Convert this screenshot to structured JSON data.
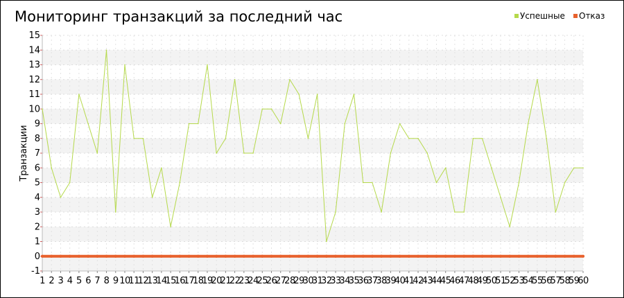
{
  "chart_data": {
    "type": "line",
    "title": "Мониторинг транзакций за последний час",
    "ylabel": "Транзакции",
    "xlabel": "",
    "ylim": [
      -1,
      15
    ],
    "yticks": [
      -1,
      0,
      1,
      2,
      3,
      4,
      5,
      6,
      7,
      8,
      9,
      10,
      11,
      12,
      13,
      14,
      15
    ],
    "x": [
      1,
      2,
      3,
      4,
      5,
      6,
      7,
      8,
      9,
      10,
      11,
      12,
      13,
      14,
      15,
      16,
      17,
      18,
      19,
      20,
      21,
      22,
      23,
      24,
      25,
      26,
      27,
      28,
      29,
      30,
      31,
      32,
      33,
      34,
      35,
      36,
      37,
      38,
      39,
      40,
      41,
      42,
      43,
      44,
      45,
      46,
      47,
      48,
      49,
      50,
      51,
      52,
      53,
      54,
      55,
      56,
      57,
      58,
      59,
      60
    ],
    "grid": true,
    "legend_position": "top-right",
    "series": [
      {
        "name": "Успешные",
        "color": "#b5d94a",
        "values": [
          10,
          6,
          4,
          5,
          11,
          9,
          7,
          14,
          3,
          13,
          8,
          8,
          4,
          6,
          2,
          5,
          9,
          9,
          13,
          7,
          8,
          12,
          7,
          7,
          10,
          10,
          9,
          12,
          11,
          8,
          11,
          1,
          3,
          9,
          11,
          5,
          5,
          3,
          7,
          9,
          8,
          8,
          7,
          5,
          6,
          3,
          3,
          8,
          8,
          6,
          4,
          2,
          5,
          9,
          12,
          8,
          3,
          5,
          6,
          6
        ]
      },
      {
        "name": "Отказ",
        "color": "#e8612c",
        "values": [
          0,
          0,
          0,
          0,
          0,
          0,
          0,
          0,
          0,
          0,
          0,
          0,
          0,
          0,
          0,
          0,
          0,
          0,
          0,
          0,
          0,
          0,
          0,
          0,
          0,
          0,
          0,
          0,
          0,
          0,
          0,
          0,
          0,
          0,
          0,
          0,
          0,
          0,
          0,
          0,
          0,
          0,
          0,
          0,
          0,
          0,
          0,
          0,
          0,
          0,
          0,
          0,
          0,
          0,
          0,
          0,
          0,
          0,
          0,
          0
        ]
      }
    ]
  }
}
